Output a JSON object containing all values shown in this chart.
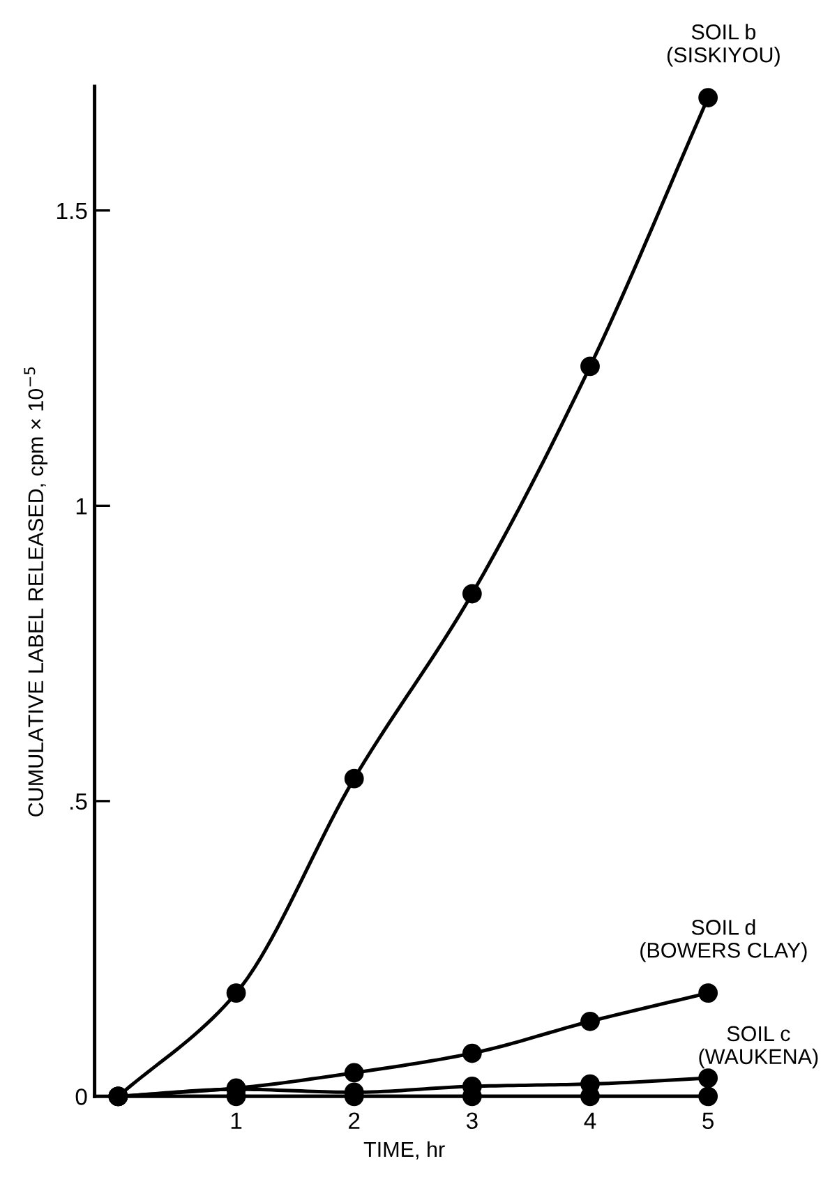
{
  "chart_data": {
    "type": "line",
    "xlabel": "TIME, hr",
    "ylabel": "CUMULATIVE LABEL RELEASED, cpm × 10$^{−5}$",
    "x": [
      0,
      1,
      2,
      3,
      4,
      5
    ],
    "series": [
      {
        "name": "SOIL b\n(SISKIYOU)",
        "color": "#000000",
        "values": [
          0,
          0.175,
          0.538,
          0.851,
          1.236,
          1.691
        ]
      },
      {
        "name": "SOIL d\n(BOWERS CLAY)",
        "color": "#000000",
        "values": [
          0,
          0.014,
          0.04,
          0.073,
          0.127,
          0.175
        ]
      },
      {
        "name": "SOIL c\n(WAUKENA)",
        "color": "#000000",
        "values": [
          0,
          0.012,
          0.007,
          0.017,
          0.021,
          0.031
        ]
      },
      {
        "color": "#000000",
        "values": [
          0,
          0,
          0,
          0,
          0,
          0
        ]
      }
    ],
    "xlim": [
      -0.2,
      5.05
    ],
    "ylim": [
      0,
      1.71
    ],
    "xticks": [
      1,
      2,
      3,
      4,
      5
    ],
    "yticks": [
      0,
      {
        "value": 0.5,
        "label": ".5"
      },
      1,
      1.5
    ],
    "marker": "circle",
    "line_style": "solid",
    "grid": false,
    "legend": false
  }
}
